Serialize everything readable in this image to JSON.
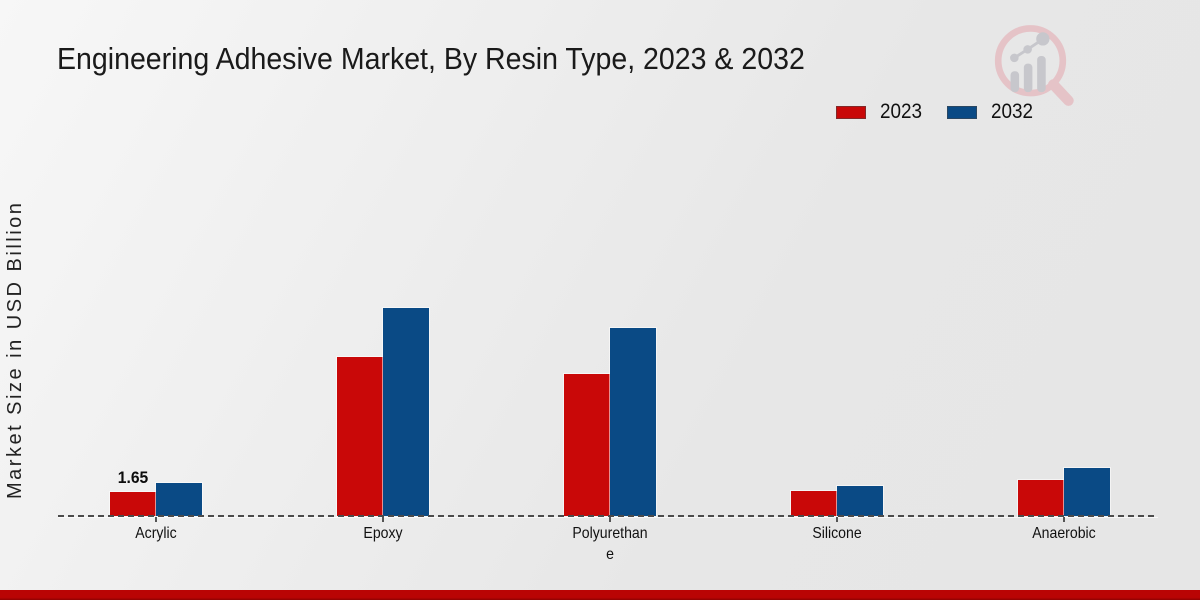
{
  "title": "Engineering Adhesive Market, By Resin Type, 2023 & 2032",
  "y_axis_label": "Market Size in USD Billion",
  "legend": [
    {
      "label": "2023",
      "color": "#c90808"
    },
    {
      "label": "2032",
      "color": "#0a4a85"
    }
  ],
  "logo": {
    "name": "magnifier-growth-chart-logo",
    "ring_color": "#e5c3c7",
    "glyph_color": "#c7c7cc"
  },
  "footer": {
    "color": "#b90404",
    "edge_color": "#8e0202"
  },
  "chart_data": {
    "type": "bar",
    "title": "Engineering Adhesive Market, By Resin Type, 2023 & 2032",
    "xlabel": "",
    "ylabel": "Market Size in USD Billion",
    "categories": [
      "Acrylic",
      "Epoxy",
      "Polyurethane",
      "Silicone",
      "Anaerobic"
    ],
    "category_display": [
      "Acrylic",
      "Epoxy",
      "Polyurethan\ne",
      "Silicone",
      "Anaerobic"
    ],
    "series": [
      {
        "name": "2023",
        "color": "#c90808",
        "values": [
          1.65,
          10.93,
          9.76,
          1.7,
          2.48
        ]
      },
      {
        "name": "2032",
        "color": "#0a4a85",
        "values": [
          2.27,
          14.3,
          12.92,
          2.06,
          3.3
        ]
      }
    ],
    "bar_labels": [
      {
        "category_index": 0,
        "series_index": 0,
        "text": "1.65"
      }
    ],
    "ylim": [
      0,
      24.5
    ],
    "grid": false,
    "legend_position": "top-right",
    "baseline_style": "dashed"
  }
}
